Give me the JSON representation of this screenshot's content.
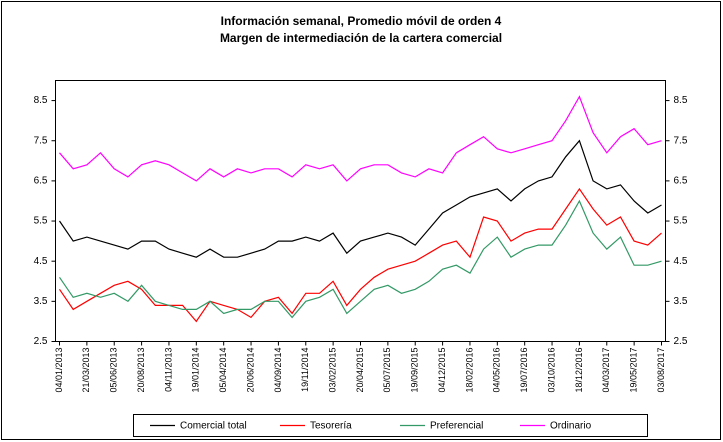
{
  "chart_data": {
    "type": "line",
    "title": "Información semanal, Promedio móvil de orden 4",
    "subtitle": "Margen de intermediación de la cartera comercial",
    "categories": [
      "04/01/2013",
      null,
      "21/03/2013",
      null,
      "05/06/2013",
      null,
      "20/08/2013",
      null,
      "04/11/2013",
      null,
      "19/01/2014",
      null,
      "05/04/2014",
      null,
      "20/06/2014",
      null,
      "04/09/2014",
      null,
      "19/11/2014",
      null,
      "03/02/2015",
      null,
      "20/04/2015",
      null,
      "05/07/2015",
      null,
      "19/09/2015",
      null,
      "04/12/2015",
      null,
      "18/02/2016",
      null,
      "04/05/2016",
      null,
      "19/07/2016",
      null,
      "03/10/2016",
      null,
      "18/12/2016",
      null,
      "04/03/2017",
      null,
      "19/05/2017",
      null,
      "03/08/2017"
    ],
    "series": [
      {
        "name": "Comercial total",
        "color": "#000000",
        "values": [
          5.5,
          5.0,
          5.1,
          5.0,
          4.9,
          4.8,
          5.0,
          5.0,
          4.8,
          4.7,
          4.6,
          4.8,
          4.6,
          4.6,
          4.7,
          4.8,
          5.0,
          5.0,
          5.1,
          5.0,
          5.2,
          4.7,
          5.0,
          5.1,
          5.2,
          5.1,
          4.9,
          5.3,
          5.7,
          5.9,
          6.1,
          6.2,
          6.3,
          6.0,
          6.3,
          6.5,
          6.6,
          7.1,
          7.5,
          6.5,
          6.3,
          6.4,
          6.0,
          5.7,
          5.9
        ]
      },
      {
        "name": "Tesorería",
        "color": "#ff0000",
        "values": [
          3.8,
          3.3,
          3.5,
          3.7,
          3.9,
          4.0,
          3.8,
          3.4,
          3.4,
          3.4,
          3.0,
          3.5,
          3.4,
          3.3,
          3.1,
          3.5,
          3.6,
          3.2,
          3.7,
          3.7,
          4.0,
          3.4,
          3.8,
          4.1,
          4.3,
          4.4,
          4.5,
          4.7,
          4.9,
          5.0,
          4.6,
          5.6,
          5.5,
          5.0,
          5.2,
          5.3,
          5.3,
          5.8,
          6.3,
          5.8,
          5.4,
          5.6,
          5.0,
          4.9,
          5.2
        ]
      },
      {
        "name": "Preferencial",
        "color": "#339966",
        "values": [
          4.1,
          3.6,
          3.7,
          3.6,
          3.7,
          3.5,
          3.9,
          3.5,
          3.4,
          3.3,
          3.3,
          3.5,
          3.2,
          3.3,
          3.3,
          3.5,
          3.5,
          3.1,
          3.5,
          3.6,
          3.8,
          3.2,
          3.5,
          3.8,
          3.9,
          3.7,
          3.8,
          4.0,
          4.3,
          4.4,
          4.2,
          4.8,
          5.1,
          4.6,
          4.8,
          4.9,
          4.9,
          5.4,
          6.0,
          5.2,
          4.8,
          5.1,
          4.4,
          4.4,
          4.5
        ]
      },
      {
        "name": "Ordinario",
        "color": "#ff00ff",
        "values": [
          7.2,
          6.8,
          6.9,
          7.2,
          6.8,
          6.6,
          6.9,
          7.0,
          6.9,
          6.7,
          6.5,
          6.8,
          6.6,
          6.8,
          6.7,
          6.8,
          6.8,
          6.6,
          6.9,
          6.8,
          6.9,
          6.5,
          6.8,
          6.9,
          6.9,
          6.7,
          6.6,
          6.8,
          6.7,
          7.2,
          7.4,
          7.6,
          7.3,
          7.2,
          7.3,
          7.4,
          7.5,
          8.0,
          8.6,
          7.7,
          7.2,
          7.6,
          7.8,
          7.4,
          7.5
        ]
      }
    ],
    "ylim": [
      2.5,
      9.0
    ],
    "yticks": [
      2.5,
      3.5,
      4.5,
      5.5,
      6.5,
      7.5,
      8.5
    ],
    "y2lim": [
      2.5,
      9.0
    ],
    "y2ticks": [
      2.5,
      3.5,
      4.5,
      5.5,
      6.5,
      7.5,
      8.5
    ],
    "legend": "bottom"
  }
}
